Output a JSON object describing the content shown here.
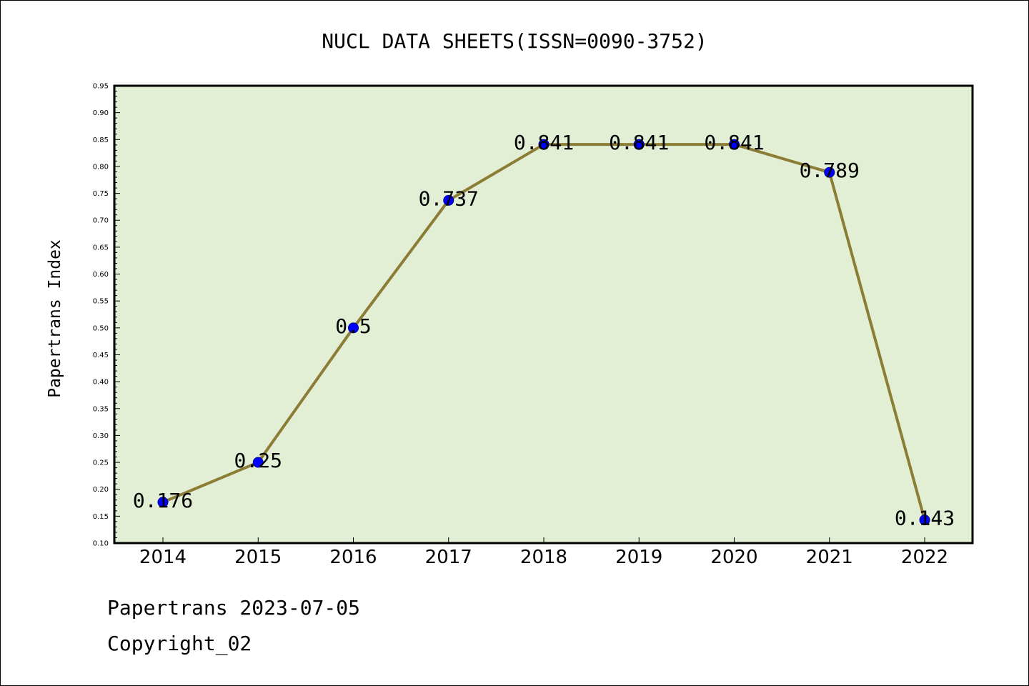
{
  "chart_data": {
    "type": "line",
    "title": "NUCL DATA SHEETS(ISSN=0090-3752)",
    "xlabel": "",
    "ylabel": "Papertrans Index",
    "categories": [
      "2014",
      "2015",
      "2016",
      "2017",
      "2018",
      "2019",
      "2020",
      "2021",
      "2022"
    ],
    "series": [
      {
        "values": [
          0.176,
          0.25,
          0.5,
          0.737,
          0.841,
          0.841,
          0.841,
          0.789,
          0.143
        ]
      }
    ],
    "data_labels": [
      "0.176",
      "0.25",
      "0.5",
      "0.737",
      "0.841",
      "0.841",
      "0.841",
      "0.789",
      "0.143"
    ],
    "ylim": [
      0.1,
      0.95
    ],
    "yticks": [
      "0.10",
      "0.15",
      "0.20",
      "0.25",
      "0.30",
      "0.35",
      "0.40",
      "0.45",
      "0.50",
      "0.55",
      "0.60",
      "0.65",
      "0.70",
      "0.75",
      "0.80",
      "0.85",
      "0.90",
      "0.95"
    ],
    "grid": false,
    "colors": {
      "plot_bg": "#e2efd5",
      "line": "#8b7d35",
      "marker": "#0000ff"
    }
  },
  "footer": {
    "line1": "Papertrans 2023-07-05",
    "line2": "Copyright_02"
  }
}
